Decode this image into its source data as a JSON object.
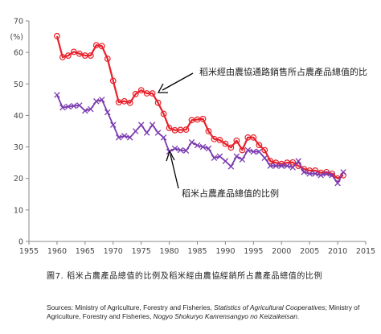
{
  "chart_data": {
    "type": "line",
    "ylabel": "(%)",
    "xlim": [
      1955,
      2015
    ],
    "ylim": [
      0,
      70
    ],
    "xticks": [
      1955,
      1960,
      1965,
      1970,
      1975,
      1980,
      1985,
      1990,
      1995,
      2000,
      2005,
      2010,
      2015
    ],
    "yticks": [
      0,
      10,
      20,
      30,
      40,
      50,
      60,
      70
    ],
    "grid": false,
    "x": [
      1960,
      1961,
      1962,
      1963,
      1964,
      1965,
      1966,
      1967,
      1968,
      1969,
      1970,
      1971,
      1972,
      1973,
      1974,
      1975,
      1976,
      1977,
      1978,
      1979,
      1980,
      1981,
      1982,
      1983,
      1984,
      1985,
      1986,
      1987,
      1988,
      1989,
      1990,
      1991,
      1992,
      1993,
      1994,
      1995,
      1996,
      1997,
      1998,
      1999,
      2000,
      2001,
      2002,
      2003,
      2004,
      2005,
      2006,
      2007,
      2008,
      2009,
      2010,
      2011
    ],
    "series": [
      {
        "name": "稻米經由農協通路銷售所占農產品總值的比",
        "color": "#e8202a",
        "marker": "circle",
        "values": [
          65.2,
          58.5,
          59,
          60.2,
          59.6,
          59,
          59,
          62.3,
          62,
          58,
          51,
          44.2,
          44.5,
          44,
          46.8,
          48,
          47,
          47,
          44,
          40.5,
          36,
          35.3,
          35.4,
          35.5,
          38.5,
          38.7,
          38.9,
          35,
          32.5,
          32.2,
          31,
          29.8,
          32,
          29,
          33,
          33,
          30.6,
          29,
          25.5,
          25,
          24.6,
          25,
          25.1,
          24,
          23,
          22.5,
          22.5,
          21.8,
          22,
          21.5,
          20,
          21
        ]
      },
      {
        "name": "稻米占農產品總值的比例",
        "color": "#7a3bb0",
        "marker": "x",
        "values": [
          46.5,
          42.5,
          42.8,
          43,
          43.2,
          41.5,
          42,
          44.5,
          45,
          41,
          37,
          33,
          33.5,
          33,
          35,
          37,
          34.5,
          37,
          34.5,
          33,
          28.5,
          29.5,
          29,
          28.8,
          31.5,
          30.5,
          30,
          29.5,
          26.5,
          27,
          25.5,
          23.8,
          27,
          26,
          29,
          28.5,
          28.5,
          26.5,
          24,
          24,
          24,
          24,
          23.5,
          25.5,
          22,
          21.5,
          21.5,
          21,
          21.5,
          21,
          18.5,
          22
        ]
      }
    ]
  },
  "annotations": {
    "red_label": "稻米經由農協通路銷售所占農產品總值的比",
    "purple_label": "稻米占農產品總值的比例"
  },
  "caption": "圖7. 稻米占農產品總值的比例及稻米經由農協經銷所占農產品總值的比例",
  "source": {
    "prefix": "Sources: Ministry of Agriculture, Forestry and Fisheries, ",
    "title1": "Statistics of Agricultural Cooperatives",
    "middle": ";  Ministry of Agriculture, Forestry and Fisheries, ",
    "title2": "Nogyo Shokuryo Kanrensangyo no Keizaikeisan",
    "suffix": "."
  }
}
